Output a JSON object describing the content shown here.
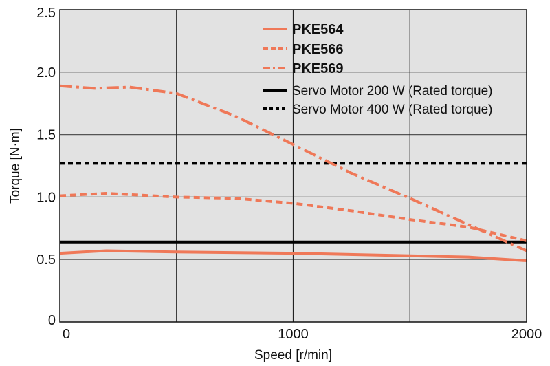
{
  "chart_data": {
    "type": "line",
    "xlabel": "Speed [r/min]",
    "ylabel": "Torque [N·m]",
    "xlim": [
      0,
      2000
    ],
    "ylim": [
      0,
      2.5
    ],
    "x_ticks": [
      {
        "value": 0,
        "label": "0"
      },
      {
        "value": 1000,
        "label": "1000"
      },
      {
        "value": 2000,
        "label": "2000"
      }
    ],
    "x_gridlines": [
      500,
      1000,
      1500
    ],
    "y_ticks": [
      {
        "value": 0,
        "label": "0"
      },
      {
        "value": 0.5,
        "label": "0.5"
      },
      {
        "value": 1.0,
        "label": "1.0"
      },
      {
        "value": 1.5,
        "label": "1.5"
      },
      {
        "value": 2.0,
        "label": "2.0"
      },
      {
        "value": 2.5,
        "label": "2.5"
      }
    ],
    "grid": true,
    "legend_position": "top-right",
    "colors": {
      "orange": "#ef7858",
      "black": "#000000",
      "plot_bg": "#e2e2e2",
      "grid": "#555555"
    },
    "series": [
      {
        "name": "PKE564",
        "style": "solid",
        "color": "#ef7858",
        "points": [
          [
            0,
            0.55
          ],
          [
            200,
            0.57
          ],
          [
            500,
            0.56
          ],
          [
            1000,
            0.55
          ],
          [
            1500,
            0.53
          ],
          [
            1750,
            0.52
          ],
          [
            2000,
            0.49
          ]
        ]
      },
      {
        "name": "PKE566",
        "style": "dashed",
        "color": "#ef7858",
        "points": [
          [
            0,
            1.01
          ],
          [
            200,
            1.03
          ],
          [
            500,
            1.0
          ],
          [
            750,
            0.99
          ],
          [
            1000,
            0.95
          ],
          [
            1250,
            0.89
          ],
          [
            1500,
            0.82
          ],
          [
            1750,
            0.76
          ],
          [
            2000,
            0.65
          ]
        ]
      },
      {
        "name": "PKE569",
        "style": "dashdot",
        "color": "#ef7858",
        "points": [
          [
            0,
            1.89
          ],
          [
            150,
            1.87
          ],
          [
            300,
            1.88
          ],
          [
            500,
            1.83
          ],
          [
            750,
            1.65
          ],
          [
            1000,
            1.42
          ],
          [
            1250,
            1.19
          ],
          [
            1500,
            0.99
          ],
          [
            1750,
            0.78
          ],
          [
            2000,
            0.57
          ]
        ]
      },
      {
        "name": "Servo Motor 200 W (Rated torque)",
        "style": "solid",
        "color": "#000000",
        "points": [
          [
            0,
            0.64
          ],
          [
            2000,
            0.64
          ]
        ]
      },
      {
        "name": "Servo Motor 400 W (Rated torque)",
        "style": "dotted",
        "color": "#000000",
        "points": [
          [
            0,
            1.27
          ],
          [
            2000,
            1.27
          ]
        ]
      }
    ]
  }
}
